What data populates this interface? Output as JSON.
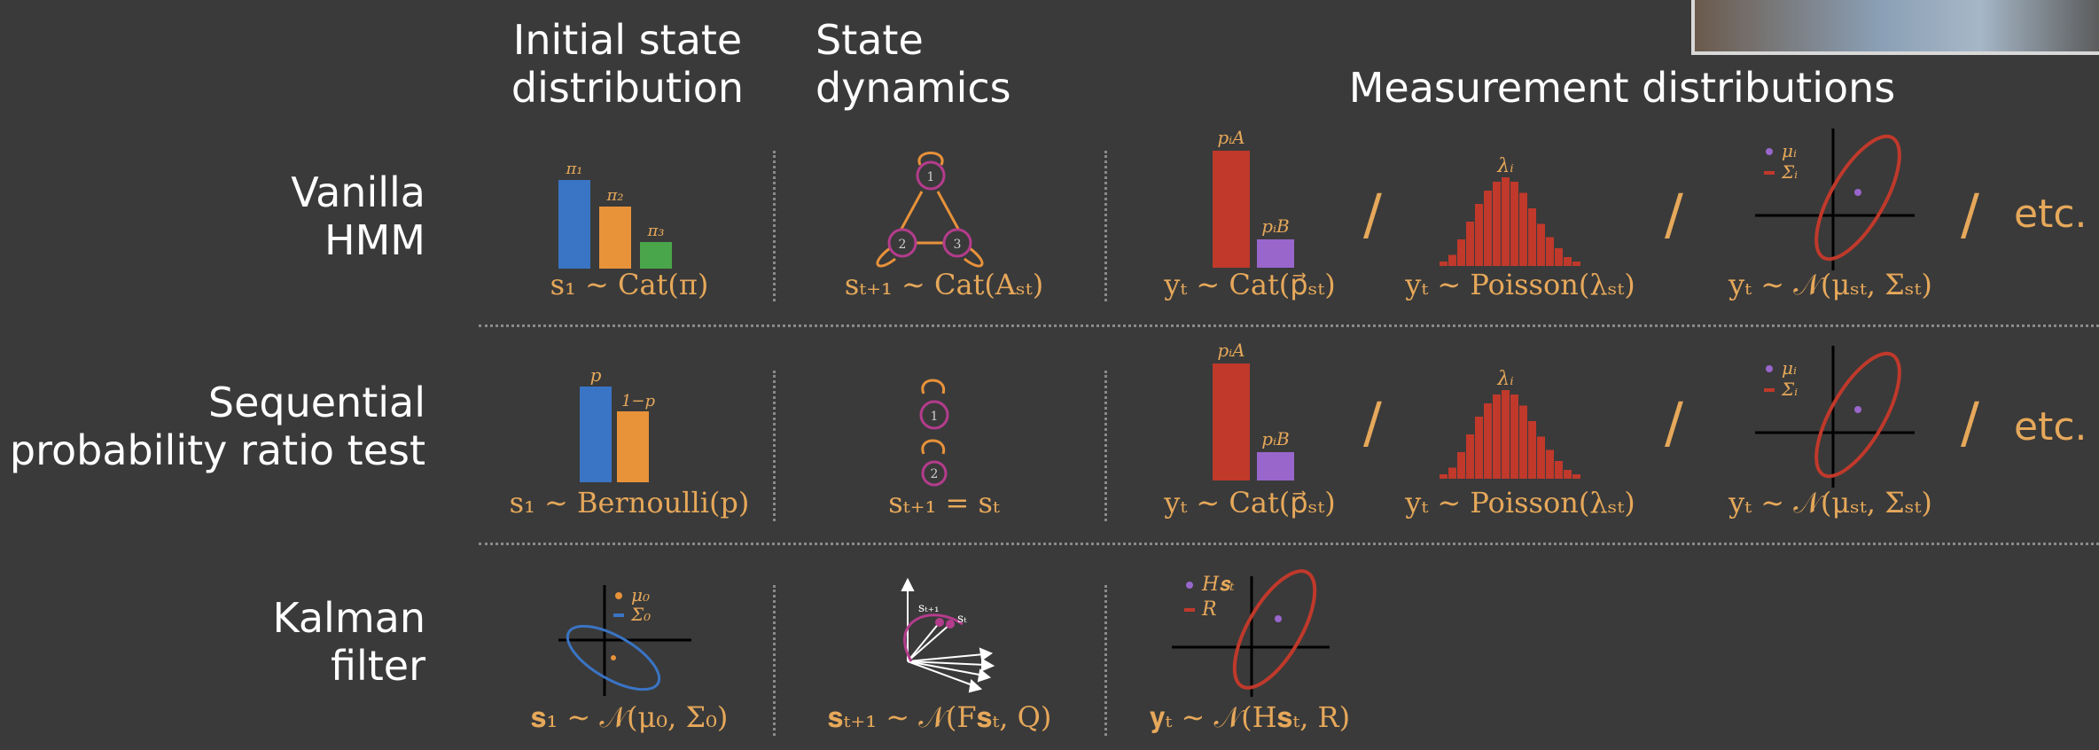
{
  "column_headers": {
    "initial": [
      "Initial state",
      "distribution"
    ],
    "dynamics": [
      "State",
      "dynamics"
    ],
    "measurement": "Measurement distributions"
  },
  "row_headers": {
    "hmm": [
      "Vanilla",
      "HMM"
    ],
    "sprt": [
      "Sequential",
      "probability ratio test"
    ],
    "kalman": [
      "Kalman",
      "filter"
    ]
  },
  "formulas": {
    "hmm_initial": "s₁ ∼ Cat(π)",
    "hmm_dynamics": "sₜ₊₁ ∼ Cat(Aₛₜ)",
    "hmm_cat": "yₜ ∼ Cat(p⃗ₛₜ)",
    "hmm_poisson": "yₜ ∼ Poisson(λₛₜ)",
    "hmm_gauss": "yₜ ∼ 𝒩(μₛₜ, Σₛₜ)",
    "sprt_initial": "s₁ ∼ Bernoulli(p)",
    "sprt_dynamics": "sₜ₊₁ = sₜ",
    "sprt_cat": "yₜ ∼ Cat(p⃗ₛₜ)",
    "sprt_poisson": "yₜ ∼ Poisson(λₛₜ)",
    "sprt_gauss": "yₜ ∼ 𝒩(μₛₜ, Σₛₜ)",
    "kalman_initial": "𝐬₁ ∼ 𝒩(μ₀, Σ₀)",
    "kalman_dynamics": "𝐬ₜ₊₁ ∼ 𝒩(F𝐬ₜ, Q)",
    "kalman_measure": "𝐲ₜ ∼ 𝒩(H𝐬ₜ, R)"
  },
  "separator": "/",
  "etc": "etc.",
  "labels": {
    "pi1": "π₁",
    "pi2": "π₂",
    "pi3": "π₃",
    "p": "p",
    "one_minus_p": "1−p",
    "piA": "pᵢA",
    "piB": "pᵢB",
    "lambda": "λᵢ",
    "mu_i": "μᵢ",
    "sigma_i": "Σᵢ",
    "mu0": "μ₀",
    "sigma0": "Σ₀",
    "Hs": "H𝐬ₜ",
    "R": "R",
    "st1": "sₜ₊₁",
    "st": "sₜ",
    "state1": "1",
    "state2": "2",
    "state3": "3"
  },
  "colors": {
    "blue": "#3a74c4",
    "orange": "#e8923a",
    "green": "#4aa64a",
    "red": "#c0392b",
    "purple": "#9966cc",
    "magenta": "#b43c8c",
    "formula": "#e6a85a"
  },
  "chart_data": [
    {
      "type": "bar",
      "categories": [
        "π₁",
        "π₂",
        "π₃"
      ],
      "values": [
        0.5,
        0.35,
        0.15
      ]
    },
    {
      "type": "bar",
      "categories": [
        "p",
        "1−p"
      ],
      "values": [
        0.58,
        0.42
      ]
    },
    {
      "type": "bar",
      "categories": [
        "pᵢA",
        "pᵢB"
      ],
      "values": [
        0.85,
        0.15
      ]
    },
    {
      "type": "bar",
      "categories": [
        "0",
        "1",
        "2",
        "3",
        "4",
        "5",
        "6",
        "7",
        "8",
        "9",
        "10",
        "11",
        "12",
        "13",
        "14",
        "15"
      ],
      "values": [
        0.02,
        0.05,
        0.12,
        0.2,
        0.28,
        0.34,
        0.38,
        0.4,
        0.38,
        0.33,
        0.26,
        0.19,
        0.13,
        0.08,
        0.04,
        0.02
      ]
    }
  ]
}
